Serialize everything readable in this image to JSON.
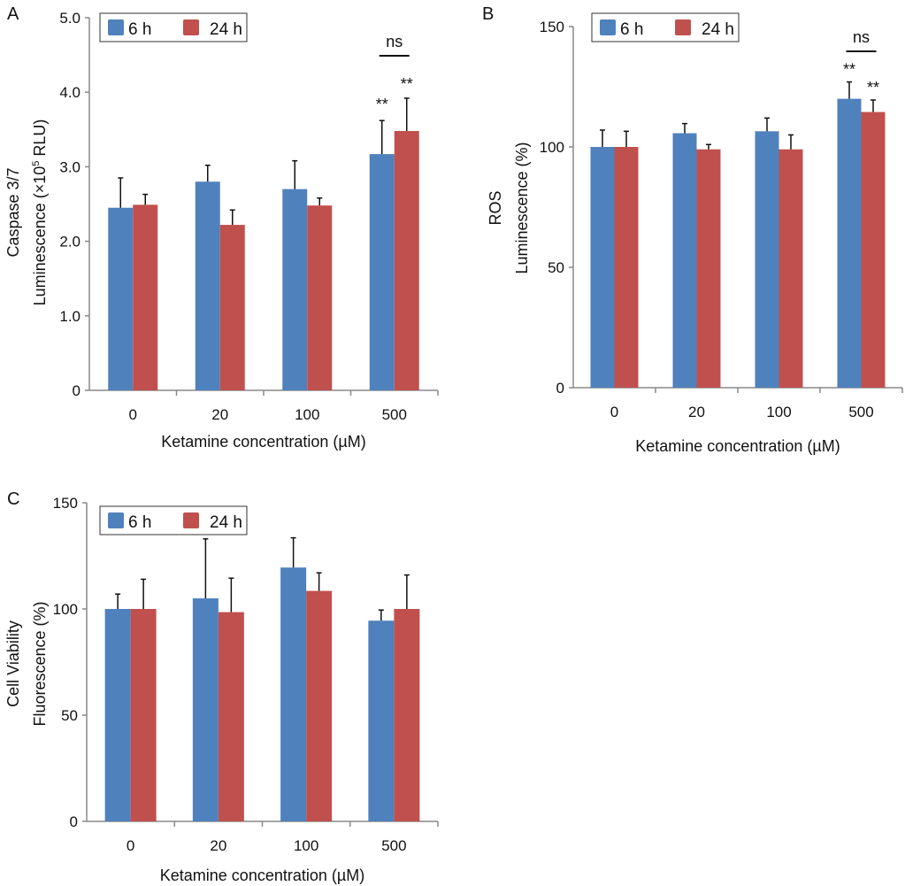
{
  "colors": {
    "series_6h": "#4f81bd",
    "series_24h": "#c0504d",
    "axis": "#888888"
  },
  "chart_data": [
    {
      "type": "bar",
      "panel": "A",
      "xlabel": "Ketamine concentration (µM)",
      "ylabel_lines": [
        "Caspase 3/7",
        "Luminescence (×10",
        "5",
        " RLU)"
      ],
      "categories": [
        "0",
        "20",
        "100",
        "500"
      ],
      "ylim": [
        0,
        5
      ],
      "yticks": [
        "0",
        "1.0",
        "2.0",
        "3.0",
        "4.0",
        "5.0"
      ],
      "ytick_values": [
        0,
        1,
        2,
        3,
        4,
        5
      ],
      "legend": [
        "6 h",
        "24 h"
      ],
      "legend_position": "top-left",
      "series": [
        {
          "name": "6 h",
          "values": [
            2.45,
            2.8,
            2.7,
            3.17
          ],
          "errors": [
            0.4,
            0.22,
            0.38,
            0.45
          ]
        },
        {
          "name": "24 h",
          "values": [
            2.49,
            2.22,
            2.48,
            3.48
          ],
          "errors": [
            0.14,
            0.2,
            0.1,
            0.44
          ]
        }
      ],
      "annotations": {
        "stars": [
          "**",
          "**"
        ],
        "ns": "ns"
      }
    },
    {
      "type": "bar",
      "panel": "B",
      "xlabel": "Ketamine concentration (µM)",
      "ylabel_lines": [
        "ROS",
        "Luminescence (%)"
      ],
      "categories": [
        "0",
        "20",
        "100",
        "500"
      ],
      "ylim": [
        0,
        150
      ],
      "yticks": [
        "0",
        "50",
        "100",
        "150"
      ],
      "ytick_values": [
        0,
        50,
        100,
        150
      ],
      "legend": [
        "6 h",
        "24 h"
      ],
      "legend_position": "top-left",
      "series": [
        {
          "name": "6 h",
          "values": [
            100,
            105.7,
            106.5,
            120
          ],
          "errors": [
            7,
            4,
            5.5,
            7
          ]
        },
        {
          "name": "24 h",
          "values": [
            100,
            99,
            99,
            114.5
          ],
          "errors": [
            6.5,
            2,
            6,
            5
          ]
        }
      ],
      "annotations": {
        "stars": [
          "**",
          "**"
        ],
        "ns": "ns"
      }
    },
    {
      "type": "bar",
      "panel": "C",
      "xlabel": "Ketamine concentration (µM)",
      "ylabel_lines": [
        "Cell Viability",
        "Fluorescence (%)"
      ],
      "categories": [
        "0",
        "20",
        "100",
        "500"
      ],
      "ylim": [
        0,
        150
      ],
      "yticks": [
        "0",
        "50",
        "100",
        "150"
      ],
      "ytick_values": [
        0,
        50,
        100,
        150
      ],
      "legend": [
        "6 h",
        "24 h"
      ],
      "legend_position": "top-left",
      "series": [
        {
          "name": "6 h",
          "values": [
            100,
            105,
            119.5,
            94.5
          ],
          "errors": [
            7,
            28,
            14,
            5
          ]
        },
        {
          "name": "24 h",
          "values": [
            100,
            98.5,
            108.5,
            100
          ],
          "errors": [
            14,
            16,
            8.5,
            16
          ]
        }
      ]
    }
  ]
}
